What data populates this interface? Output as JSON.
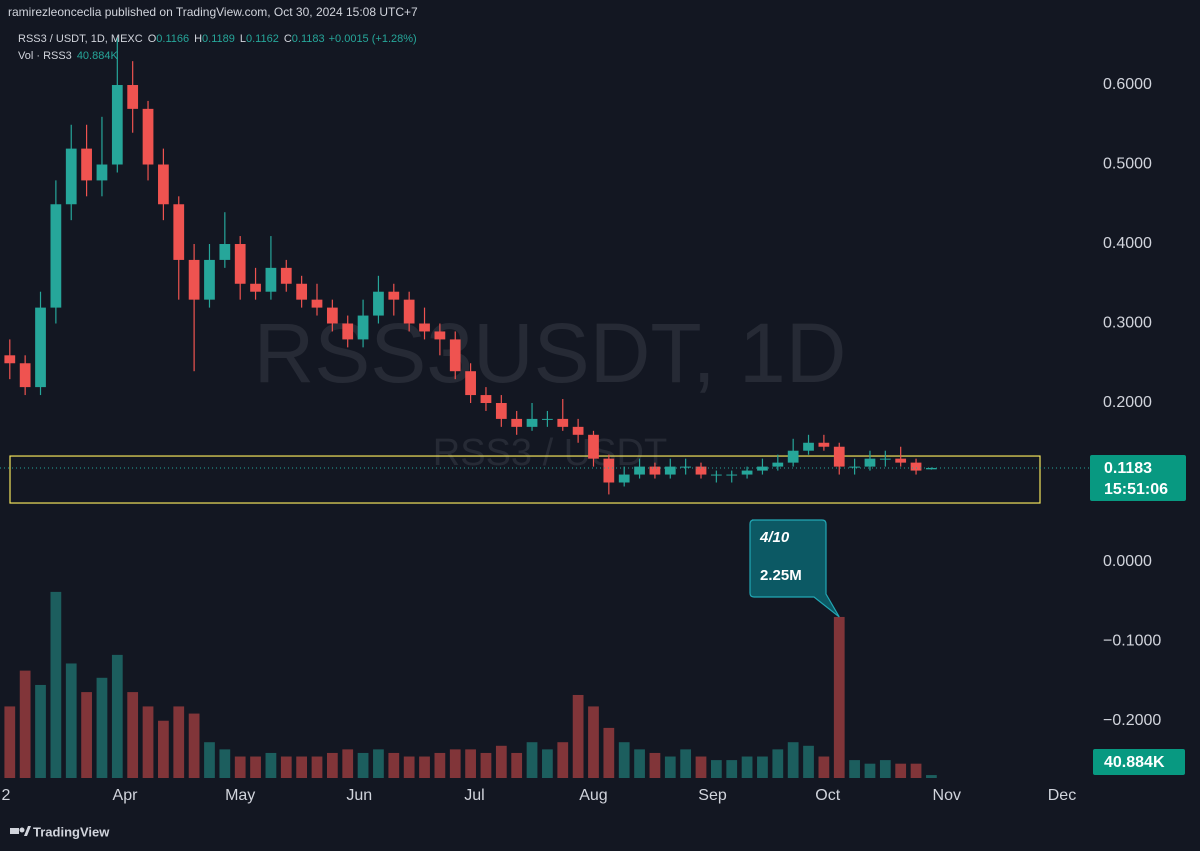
{
  "header": {
    "publisher": "ramirezleonceclia published on TradingView.com, Oct 30, 2024 15:08 UTC+7"
  },
  "chart_data": {
    "type": "candlestick",
    "legend": {
      "symbol": "RSS3 / USDT, 1D, MEXC",
      "ohlc": [
        {
          "key": "O",
          "value": "0.1166"
        },
        {
          "key": "H",
          "value": "0.1189"
        },
        {
          "key": "L",
          "value": "0.1162"
        },
        {
          "key": "C",
          "value": "0.1183"
        }
      ],
      "change": "+0.0015 (+1.28%)",
      "volume_name": "Vol · RSS3",
      "volume": "40.884K"
    },
    "watermark": "RSS3USDT, 1D",
    "watermark_sub": "RSS3 / USDT",
    "up_color": "#26a69a",
    "down_color": "#ef5350",
    "x": [
      62,
      66,
      70,
      74,
      78,
      82,
      86,
      90,
      94,
      98,
      102,
      106,
      110,
      114,
      118,
      122,
      126,
      130,
      134,
      138,
      142,
      146,
      150,
      154,
      158,
      162,
      166,
      170,
      174,
      178,
      182,
      186,
      190,
      194,
      198,
      202,
      206,
      210,
      214,
      218,
      222,
      226,
      230,
      234,
      238,
      242,
      246,
      250,
      254,
      258,
      262,
      266,
      270,
      274,
      278,
      282,
      286,
      290,
      294,
      298,
      302
    ],
    "ohlc": [
      [
        0.26,
        0.28,
        0.23,
        0.25
      ],
      [
        0.25,
        0.26,
        0.21,
        0.22
      ],
      [
        0.22,
        0.34,
        0.21,
        0.32
      ],
      [
        0.32,
        0.48,
        0.3,
        0.45
      ],
      [
        0.45,
        0.55,
        0.43,
        0.52
      ],
      [
        0.52,
        0.55,
        0.46,
        0.48
      ],
      [
        0.48,
        0.56,
        0.46,
        0.5
      ],
      [
        0.5,
        0.66,
        0.49,
        0.6
      ],
      [
        0.6,
        0.63,
        0.54,
        0.57
      ],
      [
        0.57,
        0.58,
        0.48,
        0.5
      ],
      [
        0.5,
        0.52,
        0.43,
        0.45
      ],
      [
        0.45,
        0.46,
        0.33,
        0.38
      ],
      [
        0.38,
        0.4,
        0.24,
        0.33
      ],
      [
        0.33,
        0.4,
        0.32,
        0.38
      ],
      [
        0.38,
        0.44,
        0.37,
        0.4
      ],
      [
        0.4,
        0.41,
        0.33,
        0.35
      ],
      [
        0.35,
        0.37,
        0.33,
        0.34
      ],
      [
        0.34,
        0.41,
        0.33,
        0.37
      ],
      [
        0.37,
        0.38,
        0.34,
        0.35
      ],
      [
        0.35,
        0.36,
        0.32,
        0.33
      ],
      [
        0.33,
        0.35,
        0.31,
        0.32
      ],
      [
        0.32,
        0.33,
        0.29,
        0.3
      ],
      [
        0.3,
        0.31,
        0.27,
        0.28
      ],
      [
        0.28,
        0.33,
        0.27,
        0.31
      ],
      [
        0.31,
        0.36,
        0.3,
        0.34
      ],
      [
        0.34,
        0.35,
        0.31,
        0.33
      ],
      [
        0.33,
        0.34,
        0.29,
        0.3
      ],
      [
        0.3,
        0.32,
        0.28,
        0.29
      ],
      [
        0.29,
        0.3,
        0.26,
        0.28
      ],
      [
        0.28,
        0.29,
        0.23,
        0.24
      ],
      [
        0.24,
        0.25,
        0.2,
        0.21
      ],
      [
        0.21,
        0.22,
        0.19,
        0.2
      ],
      [
        0.2,
        0.21,
        0.17,
        0.18
      ],
      [
        0.18,
        0.19,
        0.16,
        0.17
      ],
      [
        0.17,
        0.2,
        0.165,
        0.18
      ],
      [
        0.18,
        0.19,
        0.17,
        0.18
      ],
      [
        0.18,
        0.205,
        0.165,
        0.17
      ],
      [
        0.17,
        0.18,
        0.15,
        0.16
      ],
      [
        0.16,
        0.165,
        0.12,
        0.13
      ],
      [
        0.13,
        0.135,
        0.085,
        0.1
      ],
      [
        0.1,
        0.12,
        0.095,
        0.11
      ],
      [
        0.11,
        0.13,
        0.105,
        0.12
      ],
      [
        0.12,
        0.125,
        0.105,
        0.11
      ],
      [
        0.11,
        0.13,
        0.105,
        0.12
      ],
      [
        0.12,
        0.13,
        0.11,
        0.12
      ],
      [
        0.12,
        0.125,
        0.105,
        0.11
      ],
      [
        0.11,
        0.115,
        0.1,
        0.11
      ],
      [
        0.11,
        0.115,
        0.1,
        0.11
      ],
      [
        0.11,
        0.12,
        0.105,
        0.115
      ],
      [
        0.115,
        0.13,
        0.11,
        0.12
      ],
      [
        0.12,
        0.135,
        0.115,
        0.125
      ],
      [
        0.125,
        0.155,
        0.12,
        0.14
      ],
      [
        0.14,
        0.16,
        0.135,
        0.15
      ],
      [
        0.15,
        0.16,
        0.14,
        0.145
      ],
      [
        0.145,
        0.15,
        0.11,
        0.12
      ],
      [
        0.12,
        0.13,
        0.11,
        0.12
      ],
      [
        0.12,
        0.14,
        0.115,
        0.13
      ],
      [
        0.13,
        0.14,
        0.12,
        0.13
      ],
      [
        0.13,
        0.145,
        0.12,
        0.125
      ],
      [
        0.125,
        0.13,
        0.11,
        0.115
      ],
      [
        0.1166,
        0.1189,
        0.1162,
        0.1183
      ]
    ],
    "volume": [
      1000000,
      1500000,
      1300000,
      2600000,
      1600000,
      1200000,
      1400000,
      1720000,
      1200000,
      1000000,
      800000,
      1000000,
      900000,
      500000,
      400000,
      300000,
      300000,
      350000,
      300000,
      300000,
      300000,
      350000,
      400000,
      350000,
      400000,
      350000,
      300000,
      300000,
      350000,
      400000,
      400000,
      350000,
      450000,
      350000,
      500000,
      400000,
      500000,
      1160000,
      1000000,
      700000,
      500000,
      400000,
      350000,
      300000,
      400000,
      300000,
      250000,
      250000,
      300000,
      300000,
      400000,
      500000,
      450000,
      300000,
      2250000,
      250000,
      200000,
      250000,
      200000,
      200000,
      40884
    ],
    "volume_ylim": [
      0,
      10450000
    ],
    "xlim": [
      59.45,
      343.3
    ],
    "xticks": [
      {
        "value": 61,
        "label": "2"
      },
      {
        "value": 92,
        "label": "Apr"
      },
      {
        "value": 122,
        "label": "May"
      },
      {
        "value": 153,
        "label": "Jun"
      },
      {
        "value": 183,
        "label": "Jul"
      },
      {
        "value": 214,
        "label": "Aug"
      },
      {
        "value": 245,
        "label": "Sep"
      },
      {
        "value": 275,
        "label": "Oct"
      },
      {
        "value": 306,
        "label": "Nov"
      },
      {
        "value": 336,
        "label": "Dec"
      }
    ],
    "ylim": [
      -0.2717,
      0.6692
    ],
    "yticks": [
      {
        "value": 0.6,
        "label": "0.6000"
      },
      {
        "value": 0.5,
        "label": "0.5000"
      },
      {
        "value": 0.4,
        "label": "0.4000"
      },
      {
        "value": 0.3,
        "label": "0.3000"
      },
      {
        "value": 0.2,
        "label": "0.2000"
      },
      {
        "value": 0,
        "label": "0.0000"
      },
      {
        "value": -0.1,
        "label": "−0.1000"
      },
      {
        "value": -0.2,
        "label": "−0.2000"
      }
    ],
    "zone": {
      "low": 0.0742,
      "high": 0.1333,
      "color": "#f2e35c"
    },
    "last_price": {
      "value": 0.1183,
      "label": "0.1183",
      "countdown": "15:51:06"
    },
    "last_volume": {
      "value": 40884,
      "label": "40.884K"
    },
    "annotation": {
      "x": 278,
      "value": 2250000,
      "date": "4/10",
      "label": "2.25M"
    }
  },
  "footer": {
    "brand": "TradingView"
  }
}
